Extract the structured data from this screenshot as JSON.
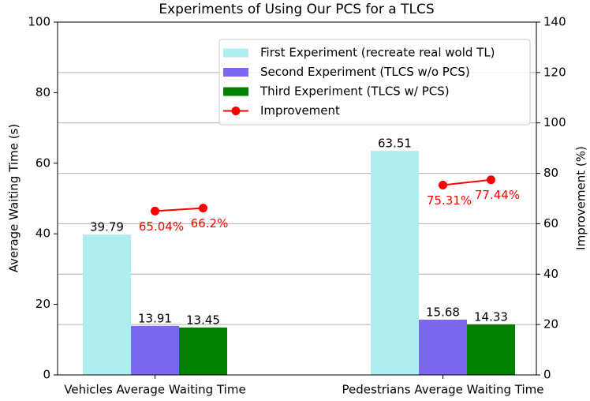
{
  "chart_data": {
    "type": "bar",
    "title": "Experiments of Using Our PCS for a TLCS",
    "ylabel": "Average Waiting Time (s)",
    "y2label": "Improvement (%)",
    "categories": [
      "Vehicles Average Waiting Time",
      "Pedestrians Average Waiting Time"
    ],
    "series": [
      {
        "name": "First Experiment (recreate real wold TL)",
        "color": "#afeeee",
        "values": [
          39.79,
          63.51
        ]
      },
      {
        "name": "Second Experiment (TLCS w/o PCS)",
        "color": "#7b68ee",
        "values": [
          13.91,
          15.68
        ]
      },
      {
        "name": "Third Experiment (TLCS w/ PCS)",
        "color": "#008000",
        "values": [
          13.45,
          14.33
        ]
      },
      {
        "name": "Improvement",
        "color": "#ff0000",
        "type": "line",
        "axis": "y2",
        "values": [
          [
            65.04,
            66.2
          ],
          [
            75.31,
            77.44
          ]
        ],
        "value_labels": [
          [
            "65.04%",
            "66.2%"
          ],
          [
            "75.31%",
            "77.44%"
          ]
        ]
      }
    ],
    "ylim": [
      0,
      100
    ],
    "yticks": [
      0,
      20,
      40,
      60,
      80,
      100
    ],
    "y2lim": [
      0,
      140
    ],
    "y2ticks": [
      0,
      20,
      40,
      60,
      80,
      100,
      120,
      140
    ],
    "grid": "y2",
    "legend": "upper right"
  }
}
